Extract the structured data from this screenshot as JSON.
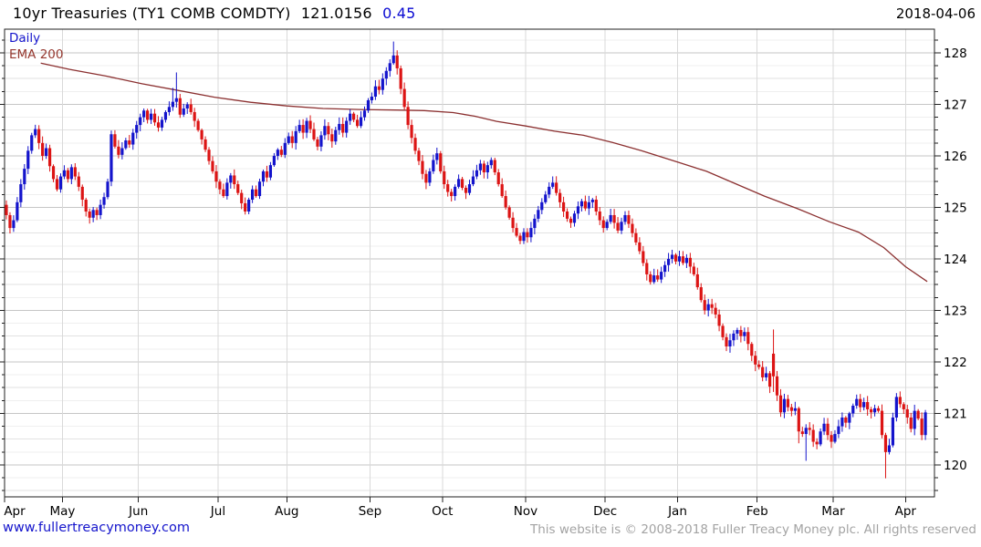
{
  "header": {
    "title": "10yr Treasuries (TY1 COMB COMDTY)",
    "last_price": "121.0156",
    "change": "0.45",
    "date": "2018-04-06"
  },
  "legend": {
    "interval_label": "Daily",
    "ema_label": "EMA 200"
  },
  "footer": {
    "link": "www.fullertreacymoney.com",
    "copyright": "This website is © 2008-2018 Fuller Treacy Money plc. All rights reserved"
  },
  "chart_data": {
    "type": "candlestick",
    "title": "10yr Treasuries (TY1 COMB COMDTY)",
    "interval": "Daily",
    "overlay": "EMA 200",
    "ylim": [
      119.38,
      128.46
    ],
    "y_ticks": [
      120,
      121,
      122,
      123,
      124,
      125,
      126,
      127,
      128
    ],
    "y_minor_step": 0.25,
    "grid": "on",
    "x_axis": {
      "labels": [
        "Apr",
        "May",
        "Jun",
        "Jul",
        "Aug",
        "Sep",
        "Oct",
        "Nov",
        "Dec",
        "Jan",
        "Feb",
        "Mar",
        "Apr"
      ],
      "tick_day_index": [
        0,
        16,
        37,
        59,
        78,
        101,
        121,
        144,
        166,
        186,
        208,
        229,
        249
      ],
      "total_days": 257
    },
    "first_open": 125.05,
    "closes": [
      124.85,
      124.6,
      124.75,
      125.1,
      125.45,
      125.75,
      126.1,
      126.4,
      126.52,
      126.25,
      126.0,
      126.15,
      125.8,
      125.55,
      125.35,
      125.6,
      125.72,
      125.55,
      125.78,
      125.6,
      125.4,
      125.15,
      124.92,
      124.8,
      124.95,
      124.85,
      125.05,
      125.2,
      125.5,
      126.42,
      126.18,
      126.02,
      126.15,
      126.3,
      126.22,
      126.45,
      126.6,
      126.75,
      126.88,
      126.7,
      126.82,
      126.65,
      126.55,
      126.7,
      126.85,
      126.95,
      127.05,
      127.12,
      126.8,
      126.92,
      127.0,
      126.85,
      126.68,
      126.5,
      126.32,
      126.12,
      125.9,
      125.7,
      125.5,
      125.35,
      125.22,
      125.48,
      125.62,
      125.45,
      125.28,
      125.08,
      124.92,
      125.15,
      125.35,
      125.22,
      125.5,
      125.7,
      125.58,
      125.82,
      126.0,
      126.12,
      126.02,
      126.25,
      126.38,
      126.25,
      126.48,
      126.6,
      126.45,
      126.68,
      126.52,
      126.32,
      126.18,
      126.4,
      126.58,
      126.42,
      126.28,
      126.5,
      126.62,
      126.45,
      126.68,
      126.82,
      126.7,
      126.58,
      126.75,
      126.88,
      127.08,
      127.15,
      127.35,
      127.28,
      127.5,
      127.65,
      127.8,
      127.95,
      127.7,
      127.3,
      126.95,
      126.6,
      126.35,
      126.1,
      125.9,
      125.65,
      125.48,
      125.7,
      125.92,
      126.05,
      125.7,
      125.45,
      125.3,
      125.22,
      125.4,
      125.55,
      125.38,
      125.28,
      125.45,
      125.6,
      125.72,
      125.85,
      125.68,
      125.82,
      125.92,
      125.68,
      125.45,
      125.22,
      125.0,
      124.8,
      124.6,
      124.45,
      124.35,
      124.52,
      124.42,
      124.6,
      124.78,
      124.95,
      125.1,
      125.25,
      125.4,
      125.48,
      125.28,
      125.1,
      124.92,
      124.78,
      124.7,
      124.88,
      125.02,
      125.12,
      124.98,
      125.1,
      125.15,
      124.92,
      124.75,
      124.6,
      124.72,
      124.85,
      124.7,
      124.55,
      124.72,
      124.85,
      124.68,
      124.5,
      124.32,
      124.15,
      123.92,
      123.7,
      123.55,
      123.68,
      123.6,
      123.75,
      123.88,
      124.0,
      124.08,
      123.95,
      124.05,
      123.92,
      124.02,
      123.85,
      123.7,
      123.45,
      123.2,
      123.0,
      123.12,
      123.05,
      122.92,
      122.7,
      122.48,
      122.3,
      122.42,
      122.55,
      122.62,
      122.5,
      122.58,
      122.35,
      122.12,
      121.95,
      121.9,
      121.7,
      121.78,
      121.52,
      121.72,
      121.35,
      121.02,
      121.28,
      121.12,
      121.05,
      121.1,
      120.65,
      120.6,
      120.72,
      120.68,
      120.45,
      120.4,
      120.65,
      120.8,
      120.58,
      120.45,
      120.6,
      120.75,
      120.92,
      120.82,
      121.0,
      121.15,
      121.28,
      121.12,
      121.22,
      121.08,
      121.02,
      121.1,
      121.05,
      120.58,
      120.25,
      120.38,
      120.92,
      121.32,
      121.18,
      121.08,
      120.92,
      120.7,
      121.05,
      120.9,
      120.58,
      121.02
    ],
    "ohlc_overrides": {
      "46": {
        "h": 127.32
      },
      "47": {
        "h": 127.62
      },
      "107": {
        "h": 128.22
      },
      "177": {
        "l": 123.58
      },
      "212": {
        "o": 122.16,
        "h": 122.63
      },
      "219": {
        "l": 120.42
      },
      "221": {
        "l": 120.08
      },
      "243": {
        "l": 119.74
      }
    },
    "ema200_points": [
      [
        10,
        127.8
      ],
      [
        18,
        127.68
      ],
      [
        28,
        127.55
      ],
      [
        38,
        127.4
      ],
      [
        48,
        127.27
      ],
      [
        58,
        127.14
      ],
      [
        68,
        127.04
      ],
      [
        78,
        126.97
      ],
      [
        88,
        126.92
      ],
      [
        98,
        126.9
      ],
      [
        108,
        126.89
      ],
      [
        116,
        126.88
      ],
      [
        124,
        126.84
      ],
      [
        130,
        126.77
      ],
      [
        136,
        126.67
      ],
      [
        144,
        126.58
      ],
      [
        152,
        126.48
      ],
      [
        160,
        126.4
      ],
      [
        168,
        126.26
      ],
      [
        176,
        126.1
      ],
      [
        186,
        125.88
      ],
      [
        194,
        125.7
      ],
      [
        202,
        125.46
      ],
      [
        210,
        125.22
      ],
      [
        219,
        124.98
      ],
      [
        228,
        124.72
      ],
      [
        236,
        124.52
      ],
      [
        243,
        124.22
      ],
      [
        249,
        123.85
      ],
      [
        255,
        123.56
      ]
    ],
    "colors": {
      "up": "#1414cc",
      "down": "#dc1414",
      "ema": "#8b3030",
      "grid_major": "#c6c6c6",
      "grid_half": "#e2e2e2",
      "grid_minor": "#efefef",
      "grid_vert": "#d9d9d9",
      "axis": "#222222"
    },
    "legend_position": "top-left"
  }
}
